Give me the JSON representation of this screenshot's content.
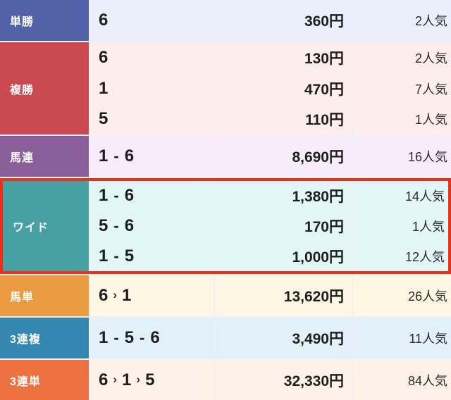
{
  "page": {
    "gap_color": "#eef0f4",
    "text_color": "#1e1e1e"
  },
  "highlight": {
    "border_color": "#ee3018"
  },
  "table": {
    "column_semantics": [
      "bet-type",
      "combination",
      "payout",
      "popularity"
    ],
    "rows": [
      {
        "label": "単勝",
        "header_color": "#5261a8",
        "cell_bg": "#eaeffb",
        "highlighted": false,
        "entries": [
          {
            "combination": "6",
            "payout": "360円",
            "popularity": "2人気"
          }
        ]
      },
      {
        "label": "複勝",
        "header_color": "#cb4a52",
        "cell_bg": "#fdeeed",
        "highlighted": false,
        "entries": [
          {
            "combination": "6",
            "payout": "130円",
            "popularity": "2人気"
          },
          {
            "combination": "1",
            "payout": "470円",
            "popularity": "7人気"
          },
          {
            "combination": "5",
            "payout": "110円",
            "popularity": "1人気"
          }
        ]
      },
      {
        "label": "馬連",
        "header_color": "#8a5f99",
        "cell_bg": "#f8ecfa",
        "highlighted": false,
        "entries": [
          {
            "combination": "1-6",
            "payout": "8,690円",
            "popularity": "16人気"
          }
        ]
      },
      {
        "label": "ワイド",
        "header_color": "#47a0a2",
        "cell_bg": "#e2f6f7",
        "highlighted": true,
        "entries": [
          {
            "combination": "1-6",
            "payout": "1,380円",
            "popularity": "14人気"
          },
          {
            "combination": "5-6",
            "payout": "170円",
            "popularity": "1人気"
          },
          {
            "combination": "1-5",
            "payout": "1,000円",
            "popularity": "12人気"
          }
        ]
      },
      {
        "label": "馬単",
        "header_color": "#eb9b3f",
        "cell_bg": "#fdf6e3",
        "highlighted": false,
        "entries": [
          {
            "combination": "6›1",
            "payout": "13,620円",
            "popularity": "26人気"
          }
        ]
      },
      {
        "label": "3連複",
        "header_color": "#3387b0",
        "cell_bg": "#e2f0fa",
        "highlighted": false,
        "entries": [
          {
            "combination": "1-5-6",
            "payout": "3,490円",
            "popularity": "11人気"
          }
        ]
      },
      {
        "label": "3連単",
        "header_color": "#ed7140",
        "cell_bg": "#fdf1e8",
        "highlighted": false,
        "entries": [
          {
            "combination": "6›1›5",
            "payout": "32,330円",
            "popularity": "84人気"
          }
        ]
      }
    ]
  }
}
